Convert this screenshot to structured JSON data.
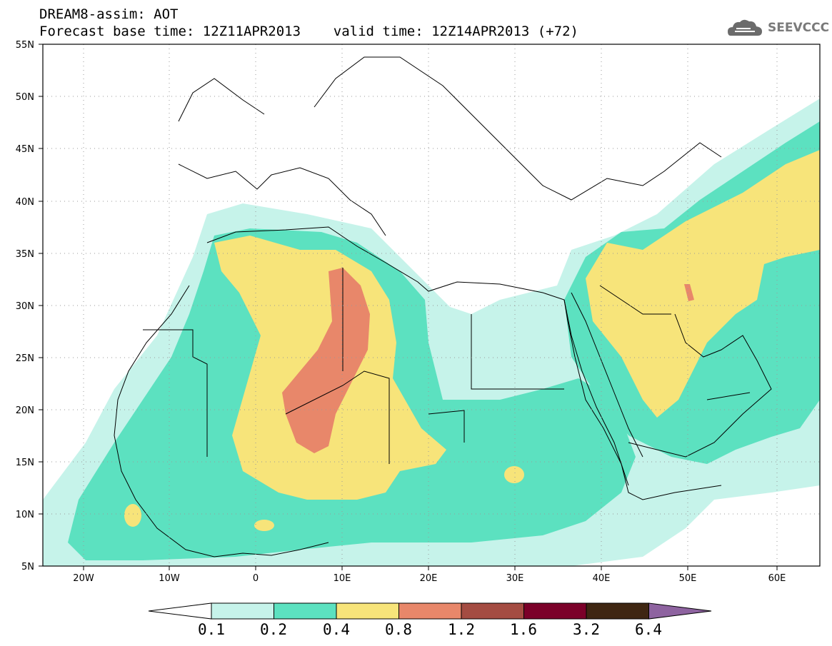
{
  "header": {
    "line1": "DREAM8-assim: AOT",
    "line2": "Forecast base time: 12Z11APR2013    valid time: 12Z14APR2013 (+72)",
    "logo_text": "SEEVCCC"
  },
  "map": {
    "lon_range": [
      -25,
      65
    ],
    "lat_range": [
      5,
      55
    ],
    "lat_labels": [
      "55N",
      "50N",
      "45N",
      "40N",
      "35N",
      "30N",
      "25N",
      "20N",
      "15N",
      "10N",
      "5N"
    ],
    "lon_labels": [
      "20W",
      "10W",
      "0",
      "10E",
      "20E",
      "30E",
      "40E",
      "50E",
      "60E"
    ],
    "gridlines": "dotted"
  },
  "colorbar": {
    "colors": [
      "#ffffff",
      "#c6f3ea",
      "#5ce1c0",
      "#f7e47a",
      "#e8876a",
      "#a44c42",
      "#7b0029",
      "#3f2612",
      "#8e63a0"
    ],
    "labels": [
      "0.1",
      "0.2",
      "0.4",
      "0.8",
      "1.2",
      "1.6",
      "3.2",
      "6.4"
    ]
  },
  "colors": {
    "class_01": "#c6f3ea",
    "class_02": "#5ce1c0",
    "class_04": "#f7e47a",
    "class_08": "#e8876a",
    "border": "#000000"
  }
}
